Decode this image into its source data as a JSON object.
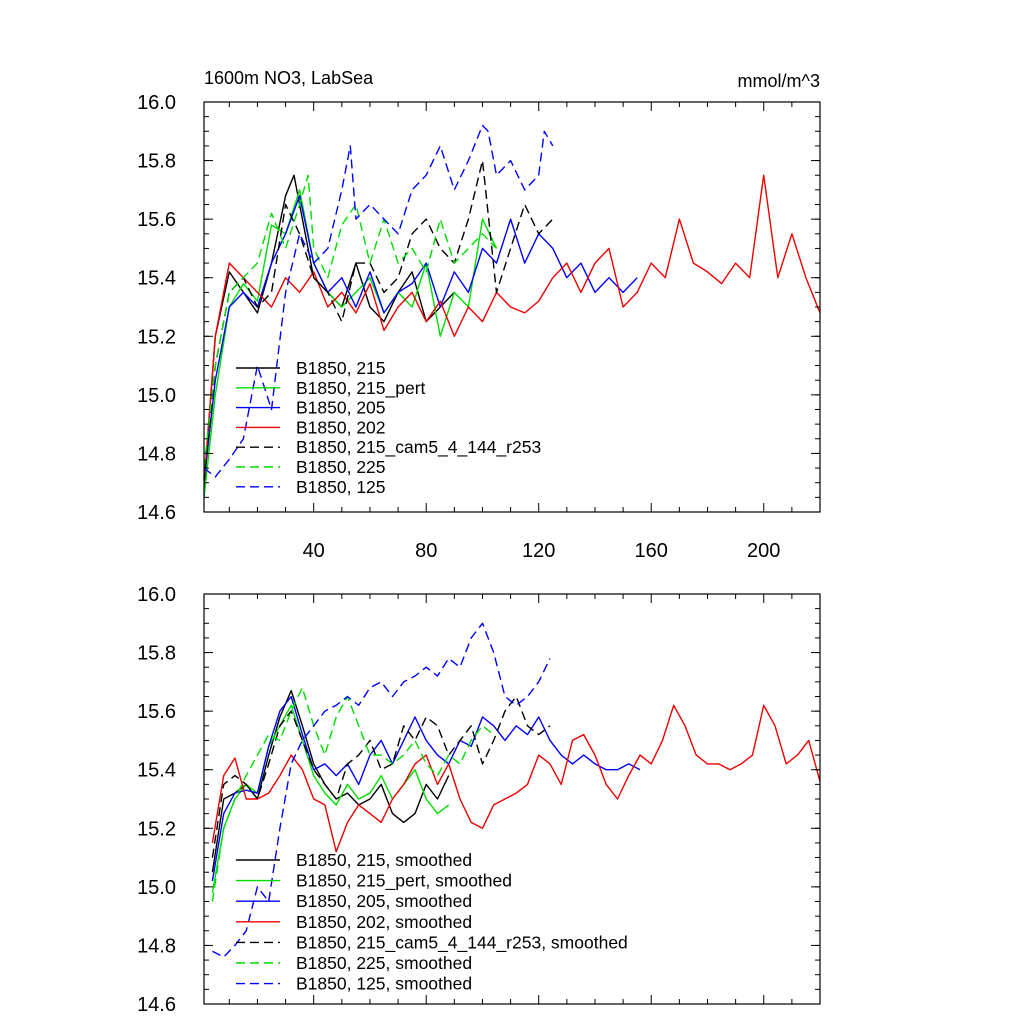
{
  "figure": {
    "title": "1600m NO3, LabSea",
    "units": "mmol/m^3"
  },
  "chart_data": [
    {
      "type": "line",
      "title": "1600m NO3, LabSea",
      "ylabel_right": "mmol/m^3",
      "xlim": [
        1,
        220
      ],
      "ylim": [
        14.6,
        16.0
      ],
      "xticks": [
        40,
        80,
        120,
        160,
        200
      ],
      "xtick_labels": [
        "40",
        "80",
        "120",
        "160",
        "200"
      ],
      "yticks": [
        14.6,
        14.8,
        15.0,
        15.2,
        15.4,
        15.6,
        15.8,
        16.0
      ],
      "ytick_labels": [
        "14.6",
        "14.8",
        "15.0",
        "15.2",
        "15.4",
        "15.6",
        "15.8",
        "16.0"
      ],
      "legend_position": "lower-left",
      "series": [
        {
          "name": "B1850, 215",
          "color": "#000000",
          "dash": "solid",
          "x": [
            1,
            5,
            10,
            15,
            20,
            25,
            30,
            33,
            36,
            40,
            45,
            50,
            55,
            60,
            65,
            70,
            75,
            80,
            85,
            90
          ],
          "values": [
            14.68,
            15.2,
            15.42,
            15.35,
            15.28,
            15.45,
            15.68,
            15.75,
            15.6,
            15.4,
            15.35,
            15.3,
            15.45,
            15.3,
            15.25,
            15.35,
            15.42,
            15.25,
            15.3,
            15.35
          ]
        },
        {
          "name": "B1850, 215_pert",
          "color": "#00dd00",
          "dash": "solid",
          "x": [
            1,
            5,
            10,
            15,
            20,
            25,
            30,
            35,
            40,
            45,
            50,
            55,
            60,
            65,
            70,
            75,
            80,
            85,
            90,
            95,
            100,
            105
          ],
          "values": [
            14.65,
            15.0,
            15.3,
            15.38,
            15.32,
            15.58,
            15.55,
            15.7,
            15.45,
            15.35,
            15.3,
            15.35,
            15.4,
            15.28,
            15.35,
            15.3,
            15.45,
            15.2,
            15.35,
            15.3,
            15.6,
            15.5
          ]
        },
        {
          "name": "B1850, 205",
          "color": "#0000ff",
          "dash": "solid",
          "x": [
            1,
            5,
            10,
            15,
            20,
            25,
            30,
            35,
            40,
            45,
            50,
            55,
            60,
            65,
            70,
            75,
            80,
            85,
            90,
            95,
            100,
            105,
            110,
            115,
            120,
            125,
            130,
            135,
            140,
            145,
            150,
            155
          ],
          "values": [
            14.7,
            15.05,
            15.3,
            15.35,
            15.3,
            15.45,
            15.55,
            15.68,
            15.45,
            15.35,
            15.4,
            15.3,
            15.42,
            15.28,
            15.35,
            15.38,
            15.45,
            15.3,
            15.42,
            15.35,
            15.5,
            15.45,
            15.6,
            15.45,
            15.55,
            15.5,
            15.4,
            15.45,
            15.35,
            15.4,
            15.35,
            15.4
          ]
        },
        {
          "name": "B1850, 202",
          "color": "#ee0000",
          "dash": "solid",
          "x": [
            1,
            5,
            10,
            15,
            20,
            25,
            30,
            35,
            40,
            45,
            50,
            55,
            60,
            65,
            70,
            75,
            80,
            85,
            90,
            95,
            100,
            105,
            110,
            115,
            120,
            125,
            130,
            135,
            140,
            145,
            150,
            155,
            160,
            165,
            170,
            175,
            180,
            185,
            190,
            195,
            200,
            205,
            210,
            215,
            220
          ],
          "values": [
            14.7,
            15.2,
            15.45,
            15.4,
            15.35,
            15.3,
            15.4,
            15.35,
            15.42,
            15.3,
            15.35,
            15.28,
            15.38,
            15.22,
            15.3,
            15.35,
            15.25,
            15.32,
            15.2,
            15.3,
            15.25,
            15.35,
            15.3,
            15.28,
            15.32,
            15.4,
            15.45,
            15.35,
            15.45,
            15.5,
            15.3,
            15.35,
            15.45,
            15.4,
            15.6,
            15.45,
            15.42,
            15.38,
            15.45,
            15.4,
            15.75,
            15.4,
            15.55,
            15.4,
            15.28
          ]
        },
        {
          "name": "B1850, 215_cam5_4_144_r253",
          "color": "#000000",
          "dash": "dashed",
          "x": [
            1,
            5,
            10,
            15,
            20,
            25,
            30,
            35,
            40,
            45,
            50,
            55,
            60,
            65,
            70,
            75,
            80,
            85,
            90,
            95,
            100,
            105,
            110,
            115,
            120,
            125
          ],
          "values": [
            14.7,
            15.1,
            15.35,
            15.4,
            15.3,
            15.35,
            15.65,
            15.55,
            15.4,
            15.35,
            15.25,
            15.45,
            15.45,
            15.35,
            15.4,
            15.55,
            15.6,
            15.5,
            15.45,
            15.6,
            15.8,
            15.35,
            15.5,
            15.65,
            15.55,
            15.6
          ]
        },
        {
          "name": "B1850, 225",
          "color": "#00dd00",
          "dash": "dashed",
          "x": [
            1,
            5,
            10,
            15,
            20,
            25,
            30,
            35,
            38,
            40,
            45,
            50,
            55,
            60,
            65,
            70,
            75,
            80,
            85,
            90,
            95,
            100,
            105
          ],
          "values": [
            14.75,
            15.1,
            15.35,
            15.4,
            15.45,
            15.62,
            15.5,
            15.65,
            15.75,
            15.5,
            15.4,
            15.58,
            15.65,
            15.45,
            15.6,
            15.45,
            15.5,
            15.42,
            15.6,
            15.45,
            15.5,
            15.55,
            15.5
          ]
        },
        {
          "name": "B1850, 125",
          "color": "#0000ff",
          "dash": "dashed",
          "x": [
            1,
            5,
            10,
            15,
            20,
            25,
            30,
            35,
            40,
            45,
            50,
            53,
            55,
            60,
            65,
            70,
            75,
            80,
            85,
            90,
            95,
            100,
            102,
            105,
            110,
            115,
            120,
            122,
            125
          ],
          "values": [
            14.75,
            14.72,
            14.78,
            14.85,
            15.1,
            14.95,
            15.35,
            15.55,
            15.45,
            15.5,
            15.7,
            15.85,
            15.6,
            15.65,
            15.6,
            15.55,
            15.7,
            15.75,
            15.85,
            15.7,
            15.8,
            15.92,
            15.9,
            15.75,
            15.8,
            15.7,
            15.75,
            15.9,
            15.85
          ]
        }
      ]
    },
    {
      "type": "line",
      "xlim": [
        1,
        220
      ],
      "ylim": [
        14.6,
        16.0
      ],
      "xticks": [
        40,
        80,
        120,
        160,
        200
      ],
      "yticks": [
        14.6,
        14.8,
        15.0,
        15.2,
        15.4,
        15.6,
        15.8,
        16.0
      ],
      "ytick_labels": [
        "14.6",
        "14.8",
        "15.0",
        "15.2",
        "15.4",
        "15.6",
        "15.8",
        "16.0"
      ],
      "legend_position": "lower-left",
      "series": [
        {
          "name": "B1850, 215, smoothed",
          "color": "#000000",
          "dash": "solid",
          "x": [
            4,
            8,
            12,
            16,
            20,
            24,
            28,
            32,
            36,
            40,
            44,
            48,
            52,
            56,
            60,
            64,
            68,
            72,
            76,
            80,
            84,
            88
          ],
          "values": [
            15.05,
            15.3,
            15.32,
            15.35,
            15.3,
            15.45,
            15.58,
            15.67,
            15.55,
            15.42,
            15.35,
            15.3,
            15.32,
            15.28,
            15.3,
            15.35,
            15.25,
            15.22,
            15.25,
            15.35,
            15.3,
            15.38
          ]
        },
        {
          "name": "B1850, 215_pert, smoothed",
          "color": "#00dd00",
          "dash": "solid",
          "x": [
            4,
            8,
            12,
            16,
            20,
            24,
            28,
            32,
            36,
            40,
            44,
            48,
            52,
            56,
            60,
            64,
            68,
            72,
            76,
            80,
            84,
            88
          ],
          "values": [
            14.98,
            15.2,
            15.3,
            15.35,
            15.32,
            15.48,
            15.55,
            15.62,
            15.5,
            15.38,
            15.32,
            15.28,
            15.35,
            15.3,
            15.32,
            15.38,
            15.3,
            15.35,
            15.4,
            15.3,
            15.25,
            15.28
          ]
        },
        {
          "name": "B1850, 205, smoothed",
          "color": "#0000ff",
          "dash": "solid",
          "x": [
            4,
            8,
            12,
            16,
            20,
            24,
            28,
            32,
            36,
            40,
            44,
            48,
            52,
            56,
            60,
            64,
            68,
            72,
            76,
            80,
            84,
            88,
            92,
            96,
            100,
            104,
            108,
            112,
            116,
            120,
            124,
            128,
            132,
            136,
            140,
            144,
            148,
            152,
            156
          ],
          "values": [
            15.02,
            15.25,
            15.32,
            15.33,
            15.32,
            15.48,
            15.6,
            15.65,
            15.52,
            15.4,
            15.42,
            15.38,
            15.42,
            15.35,
            15.45,
            15.5,
            15.42,
            15.5,
            15.58,
            15.5,
            15.45,
            15.42,
            15.5,
            15.48,
            15.58,
            15.55,
            15.5,
            15.55,
            15.52,
            15.58,
            15.5,
            15.45,
            15.42,
            15.45,
            15.42,
            15.4,
            15.4,
            15.42,
            15.4
          ]
        },
        {
          "name": "B1850, 202, smoothed",
          "color": "#ee0000",
          "dash": "solid",
          "x": [
            4,
            8,
            12,
            16,
            20,
            24,
            28,
            32,
            36,
            40,
            44,
            48,
            52,
            56,
            60,
            64,
            68,
            72,
            76,
            80,
            84,
            88,
            92,
            96,
            100,
            104,
            108,
            112,
            116,
            120,
            124,
            128,
            132,
            136,
            140,
            144,
            148,
            152,
            156,
            160,
            164,
            168,
            172,
            176,
            180,
            184,
            188,
            192,
            196,
            200,
            204,
            208,
            212,
            216,
            220
          ],
          "values": [
            15.15,
            15.38,
            15.44,
            15.3,
            15.3,
            15.32,
            15.38,
            15.45,
            15.4,
            15.3,
            15.28,
            15.12,
            15.22,
            15.28,
            15.25,
            15.22,
            15.3,
            15.35,
            15.42,
            15.45,
            15.35,
            15.42,
            15.3,
            15.22,
            15.2,
            15.28,
            15.3,
            15.32,
            15.35,
            15.45,
            15.42,
            15.35,
            15.5,
            15.52,
            15.45,
            15.35,
            15.3,
            15.38,
            15.45,
            15.42,
            15.5,
            15.62,
            15.55,
            15.45,
            15.42,
            15.42,
            15.4,
            15.42,
            15.45,
            15.62,
            15.55,
            15.42,
            15.45,
            15.5,
            15.36
          ]
        },
        {
          "name": "B1850, 215_cam5_4_144_r253, smoothed",
          "color": "#000000",
          "dash": "dashed",
          "x": [
            4,
            8,
            12,
            16,
            20,
            24,
            28,
            32,
            36,
            40,
            44,
            48,
            52,
            56,
            60,
            64,
            68,
            72,
            76,
            80,
            84,
            88,
            92,
            96,
            100,
            104,
            108,
            112,
            116,
            120,
            124
          ],
          "values": [
            15.1,
            15.35,
            15.38,
            15.35,
            15.3,
            15.42,
            15.55,
            15.6,
            15.5,
            15.4,
            15.35,
            15.3,
            15.42,
            15.45,
            15.5,
            15.4,
            15.42,
            15.55,
            15.5,
            15.58,
            15.55,
            15.45,
            15.5,
            15.55,
            15.42,
            15.5,
            15.6,
            15.65,
            15.55,
            15.52,
            15.55
          ]
        },
        {
          "name": "B1850, 225, smoothed",
          "color": "#00dd00",
          "dash": "dashed",
          "x": [
            4,
            8,
            12,
            16,
            20,
            24,
            28,
            32,
            36,
            40,
            44,
            48,
            52,
            56,
            60,
            64,
            68,
            72,
            76,
            80,
            84,
            88,
            92,
            96,
            100,
            104
          ],
          "values": [
            14.95,
            15.2,
            15.3,
            15.38,
            15.45,
            15.52,
            15.5,
            15.6,
            15.68,
            15.55,
            15.45,
            15.58,
            15.65,
            15.55,
            15.45,
            15.45,
            15.42,
            15.45,
            15.5,
            15.42,
            15.38,
            15.45,
            15.42,
            15.5,
            15.55,
            15.52
          ]
        },
        {
          "name": "B1850, 125, smoothed",
          "color": "#0000ff",
          "dash": "dashed",
          "x": [
            4,
            8,
            12,
            16,
            20,
            24,
            28,
            32,
            36,
            40,
            44,
            48,
            52,
            56,
            60,
            64,
            68,
            72,
            76,
            80,
            84,
            88,
            92,
            96,
            100,
            104,
            108,
            112,
            116,
            120,
            124
          ],
          "values": [
            14.78,
            14.76,
            14.8,
            14.85,
            15.0,
            14.95,
            15.2,
            15.42,
            15.5,
            15.55,
            15.6,
            15.62,
            15.65,
            15.62,
            15.68,
            15.7,
            15.65,
            15.7,
            15.72,
            15.75,
            15.72,
            15.78,
            15.75,
            15.85,
            15.9,
            15.8,
            15.65,
            15.62,
            15.65,
            15.7,
            15.78
          ]
        }
      ]
    }
  ]
}
